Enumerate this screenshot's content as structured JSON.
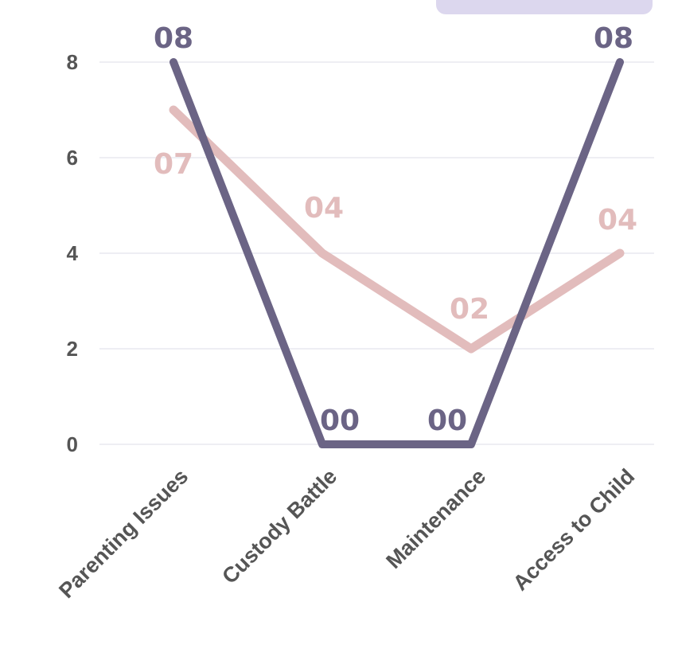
{
  "chart_data": {
    "type": "line",
    "categories": [
      "Parenting Issues",
      "Custody Battle",
      "Maintenance",
      "Access to Child"
    ],
    "series": [
      {
        "values": [
          8,
          0,
          0,
          8
        ],
        "labels": [
          "08",
          "00",
          "00",
          "08"
        ],
        "color": "#6b6485"
      },
      {
        "values": [
          7,
          4,
          2,
          4
        ],
        "labels": [
          "07",
          "04",
          "02",
          "04"
        ],
        "color": "#e2bcbc"
      }
    ],
    "yticks": [
      "0",
      "2",
      "4",
      "6",
      "8"
    ],
    "ylim": [
      0,
      8
    ],
    "grid": true,
    "legend_color": "#dcd7ee"
  }
}
